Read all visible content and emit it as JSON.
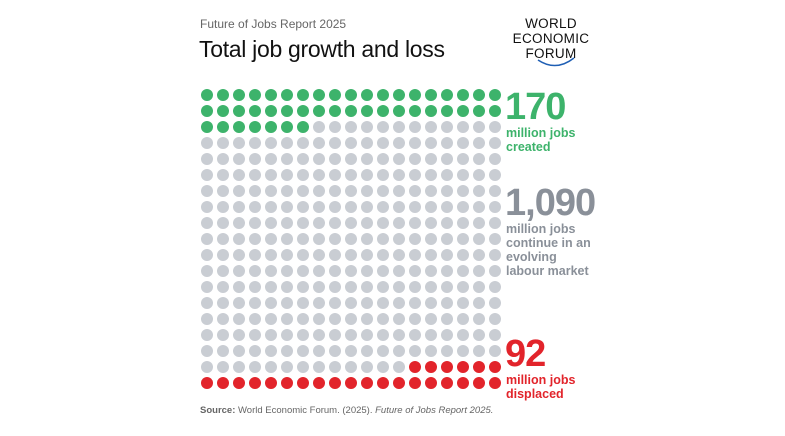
{
  "chart_data": {
    "type": "waffle",
    "subtitle": "Future of Jobs Report 2025",
    "title": "Total job growth and loss",
    "categories": [
      "million jobs created",
      "million jobs continue in an evolving labour market",
      "million jobs displaced"
    ],
    "values": [
      170,
      1090,
      92
    ],
    "value_labels": [
      "170",
      "1,090",
      "92"
    ],
    "colors": [
      "#3db36b",
      "#c9cdd3",
      "#e2242b"
    ],
    "label_colors": [
      "#3db36b",
      "#8a9099",
      "#e2242b"
    ]
  },
  "logo": [
    "WORLD",
    "ECONOMIC",
    "FORUM"
  ],
  "source": {
    "label": "Source:",
    "text": "World Economic Forum. (2025).",
    "title": "Future of Jobs Report 2025."
  }
}
